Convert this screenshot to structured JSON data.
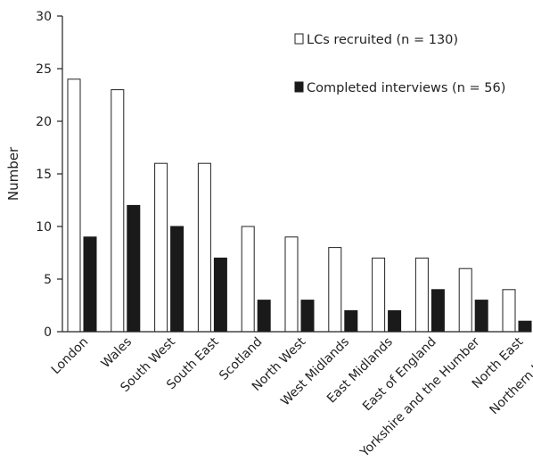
{
  "chart_data": {
    "type": "bar",
    "ylabel": "Number",
    "xlabel": "",
    "ylim": [
      0,
      30
    ],
    "yticks": [
      0,
      5,
      10,
      15,
      20,
      25,
      30
    ],
    "grid": false,
    "legend_position": "top-right",
    "categories": [
      "London",
      "Wales",
      "South West",
      "South East",
      "Scotland",
      "North West",
      "West Midlands",
      "East Midlands",
      "East of England",
      "Yorkshire and the Humber",
      "North East",
      "Northern Ireland"
    ],
    "series": [
      {
        "name": "LCs recruited (n = 130)",
        "fill": "#ffffff",
        "stroke": "#222222",
        "values": [
          24,
          23,
          16,
          16,
          10,
          9,
          8,
          7,
          7,
          6,
          4,
          0
        ]
      },
      {
        "name": "Completed interviews (n = 56)",
        "fill": "#1a1a1a",
        "stroke": "#1a1a1a",
        "values": [
          9,
          12,
          10,
          7,
          3,
          3,
          2,
          2,
          4,
          3,
          1,
          0
        ]
      }
    ]
  }
}
